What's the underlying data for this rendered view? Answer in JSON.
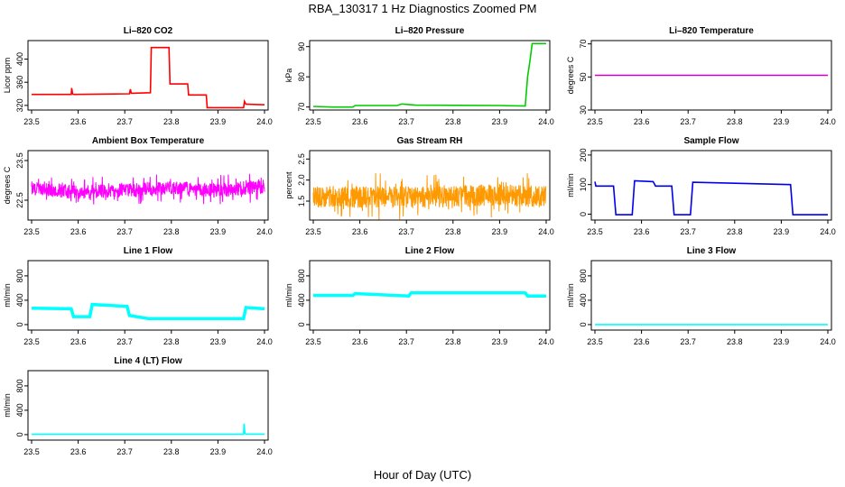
{
  "figure": {
    "title": "RBA_130317  1 Hz Diagnostics Zoomed PM",
    "xlabel": "Hour of Day (UTC)"
  },
  "chart_data": [
    {
      "type": "line",
      "title": "Li–820 CO2",
      "ylabel": "Licor ppm",
      "color": "#ff0000",
      "xlim": [
        23.5,
        24.0
      ],
      "ylim": [
        312,
        432
      ],
      "xticks": [
        "23.5",
        "23.6",
        "23.7",
        "23.8",
        "23.9",
        "24.0"
      ],
      "yticks": [
        "320",
        "360",
        "400"
      ],
      "x": [
        23.5,
        23.585,
        23.586,
        23.588,
        23.59,
        23.71,
        23.712,
        23.714,
        23.755,
        23.757,
        23.795,
        23.797,
        23.835,
        23.837,
        23.875,
        23.877,
        23.955,
        23.957,
        23.96,
        23.962,
        24.0
      ],
      "y": [
        339,
        339,
        350,
        340,
        339,
        340,
        348,
        341,
        342,
        420,
        420,
        357,
        357,
        338,
        338,
        316,
        316,
        327,
        322,
        322,
        321
      ]
    },
    {
      "type": "line",
      "title": "Li–820 Pressure",
      "ylabel": "kPa",
      "color": "#00cc00",
      "xlim": [
        23.5,
        24.0
      ],
      "ylim": [
        69,
        92
      ],
      "xticks": [
        "23.5",
        "23.6",
        "23.7",
        "23.8",
        "23.9",
        "24.0"
      ],
      "yticks": [
        "70",
        "80",
        "90"
      ],
      "x": [
        23.5,
        23.54,
        23.585,
        23.59,
        23.68,
        23.69,
        23.72,
        23.9,
        23.955,
        23.96,
        23.965,
        23.97,
        24.0
      ],
      "y": [
        70.2,
        70.0,
        70.0,
        70.5,
        70.5,
        71.0,
        70.6,
        70.5,
        70.3,
        80.0,
        85.0,
        91.0,
        91.0
      ]
    },
    {
      "type": "line",
      "title": "Li–820 Temperature",
      "ylabel": "degrees C",
      "color": "#cc00cc",
      "xlim": [
        23.5,
        24.0
      ],
      "ylim": [
        30,
        72
      ],
      "xticks": [
        "23.5",
        "23.6",
        "23.7",
        "23.8",
        "23.9",
        "24.0"
      ],
      "yticks": [
        "30",
        "50",
        "70"
      ],
      "x": [
        23.5,
        24.0
      ],
      "y": [
        51,
        51
      ]
    },
    {
      "type": "line",
      "title": "Ambient Box Temperature",
      "ylabel": "degrees C",
      "color": "#ff00ff",
      "xlim": [
        23.5,
        24.0
      ],
      "ylim": [
        22.0,
        23.75
      ],
      "xticks": [
        "23.5",
        "23.6",
        "23.7",
        "23.8",
        "23.9",
        "24.0"
      ],
      "yticks": [
        "22.5",
        "23.5"
      ],
      "x": [
        23.5,
        23.6,
        23.7,
        23.8,
        23.9,
        24.0
      ],
      "y": [
        22.8,
        22.7,
        22.75,
        22.8,
        22.75,
        22.85
      ]
    },
    {
      "type": "line",
      "title": "Gas Stream RH",
      "ylabel": "percent",
      "color": "#ff9900",
      "xlim": [
        23.5,
        24.0
      ],
      "ylim": [
        1.05,
        2.7
      ],
      "xticks": [
        "23.5",
        "23.6",
        "23.7",
        "23.8",
        "23.9",
        "24.0"
      ],
      "yticks": [
        "1.5",
        "2.0",
        "2.5"
      ],
      "x": [
        23.5,
        23.6,
        23.7,
        23.8,
        23.9,
        24.0
      ],
      "y": [
        1.6,
        1.6,
        1.6,
        1.6,
        1.65,
        1.6
      ]
    },
    {
      "type": "line",
      "title": "Sample Flow",
      "ylabel": "ml/min",
      "color": "#0000ee",
      "xlim": [
        23.5,
        24.0
      ],
      "ylim": [
        -20,
        215
      ],
      "xticks": [
        "23.5",
        "23.6",
        "23.7",
        "23.8",
        "23.9",
        "24.0"
      ],
      "yticks": [
        "0",
        "100",
        "200"
      ],
      "x": [
        23.5,
        23.502,
        23.54,
        23.545,
        23.58,
        23.585,
        23.625,
        23.63,
        23.665,
        23.67,
        23.705,
        23.71,
        23.92,
        23.925,
        24.0
      ],
      "y": [
        110,
        95,
        95,
        -2,
        -2,
        113,
        110,
        95,
        95,
        -2,
        -2,
        108,
        100,
        -2,
        -2
      ]
    },
    {
      "type": "line",
      "title": "Line 1 Flow",
      "ylabel": "ml/min",
      "color": "#00ffff",
      "xlim": [
        23.5,
        24.0
      ],
      "ylim": [
        -90,
        1050
      ],
      "xticks": [
        "23.5",
        "23.6",
        "23.7",
        "23.8",
        "23.9",
        "24.0"
      ],
      "yticks": [
        "0",
        "400",
        "800"
      ],
      "x": [
        23.5,
        23.585,
        23.59,
        23.625,
        23.63,
        23.705,
        23.71,
        23.75,
        23.955,
        23.96,
        24.0
      ],
      "y": [
        270,
        260,
        130,
        130,
        330,
        300,
        150,
        100,
        100,
        280,
        260
      ],
      "noise": 25
    },
    {
      "type": "line",
      "title": "Line 2 Flow",
      "ylabel": "ml/min",
      "color": "#00ffff",
      "xlim": [
        23.5,
        24.0
      ],
      "ylim": [
        -90,
        1050
      ],
      "xticks": [
        "23.5",
        "23.6",
        "23.7",
        "23.8",
        "23.9",
        "24.0"
      ],
      "yticks": [
        "0",
        "400",
        "800"
      ],
      "x": [
        23.5,
        23.585,
        23.59,
        23.705,
        23.71,
        23.955,
        23.96,
        24.0
      ],
      "y": [
        480,
        480,
        510,
        470,
        520,
        520,
        470,
        470
      ],
      "noise": 15
    },
    {
      "type": "line",
      "title": "Line 3 Flow",
      "ylabel": "ml/min",
      "color": "#00ffff",
      "xlim": [
        23.5,
        24.0
      ],
      "ylim": [
        -90,
        1050
      ],
      "xticks": [
        "23.5",
        "23.6",
        "23.7",
        "23.8",
        "23.9",
        "24.0"
      ],
      "yticks": [
        "0",
        "400",
        "800"
      ],
      "x": [
        23.5,
        24.0
      ],
      "y": [
        0,
        0
      ]
    },
    {
      "type": "line",
      "title": "Line 4 (LT) Flow",
      "ylabel": "ml/min",
      "color": "#00ffff",
      "xlim": [
        23.5,
        24.0
      ],
      "ylim": [
        -90,
        1050
      ],
      "xticks": [
        "23.5",
        "23.6",
        "23.7",
        "23.8",
        "23.9",
        "24.0"
      ],
      "yticks": [
        "0",
        "400",
        "800"
      ],
      "x": [
        23.5,
        23.955,
        23.956,
        23.958,
        23.96,
        24.0
      ],
      "y": [
        5,
        5,
        180,
        20,
        8,
        8
      ]
    }
  ]
}
